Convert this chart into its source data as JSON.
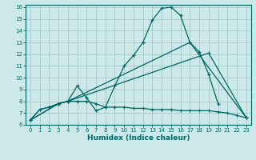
{
  "xlabel": "Humidex (Indice chaleur)",
  "bg_color": "#cce8e8",
  "grid_color": "#aacccc",
  "line_color": "#006666",
  "xlim": [
    -0.5,
    23.5
  ],
  "ylim": [
    6,
    16.2
  ],
  "xticks": [
    0,
    1,
    2,
    3,
    4,
    5,
    6,
    7,
    8,
    9,
    10,
    11,
    12,
    13,
    14,
    15,
    16,
    17,
    18,
    19,
    20,
    21,
    22,
    23
  ],
  "yticks": [
    6,
    7,
    8,
    9,
    10,
    11,
    12,
    13,
    14,
    15,
    16
  ],
  "line1_x": [
    0,
    1,
    2,
    3,
    4,
    5,
    6,
    7,
    8,
    9,
    10,
    11,
    12,
    13,
    14,
    15,
    16,
    17,
    18,
    19,
    20
  ],
  "line1_y": [
    6.4,
    7.3,
    7.5,
    7.8,
    8.0,
    9.3,
    8.3,
    7.2,
    7.5,
    9.3,
    11.0,
    11.9,
    13.0,
    14.9,
    15.9,
    16.0,
    15.3,
    13.0,
    12.2,
    10.3,
    7.8
  ],
  "line2_x": [
    0,
    3,
    4,
    17,
    23
  ],
  "line2_y": [
    6.4,
    7.8,
    8.0,
    13.0,
    6.6
  ],
  "line3_x": [
    0,
    3,
    4,
    19,
    23
  ],
  "line3_y": [
    6.4,
    7.8,
    8.0,
    12.1,
    6.6
  ],
  "line4_x": [
    0,
    1,
    2,
    3,
    4,
    5,
    6,
    7,
    8,
    9,
    10,
    11,
    12,
    13,
    14,
    15,
    16,
    17,
    18,
    19,
    20,
    21,
    22,
    23
  ],
  "line4_y": [
    6.4,
    7.3,
    7.5,
    7.8,
    8.0,
    8.0,
    8.0,
    7.8,
    7.5,
    7.5,
    7.5,
    7.4,
    7.4,
    7.3,
    7.3,
    7.3,
    7.2,
    7.2,
    7.2,
    7.2,
    7.1,
    7.0,
    6.8,
    6.6
  ],
  "xlabel_fontsize": 6.5,
  "tick_fontsize": 5.0,
  "lw": 0.9,
  "marker_size": 3.5
}
